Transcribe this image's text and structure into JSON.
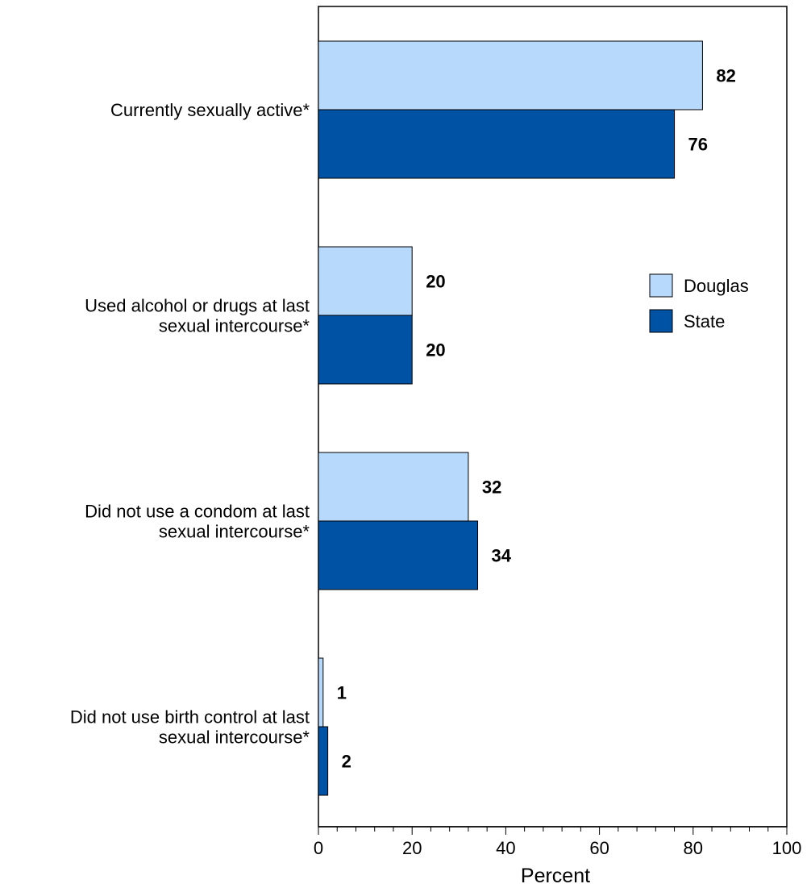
{
  "chart_data": {
    "type": "bar",
    "orientation": "horizontal",
    "categories": [
      [
        "Currently sexually active*"
      ],
      [
        "Used alcohol or drugs at last",
        "sexual intercourse*"
      ],
      [
        "Did not use a condom at last",
        " sexual intercourse*"
      ],
      [
        "Did not use birth control at last",
        "sexual intercourse*"
      ]
    ],
    "series": [
      {
        "name": "Douglas",
        "color": "#b7d9fb",
        "values": [
          82,
          20,
          32,
          1
        ]
      },
      {
        "name": "State",
        "color": "#0052a5",
        "values": [
          76,
          20,
          34,
          2
        ]
      }
    ],
    "xlabel": "Percent",
    "xlim": [
      0,
      100
    ],
    "xticks": [
      0,
      20,
      40,
      60,
      80,
      100
    ],
    "legend_position": "right",
    "grid": false
  }
}
